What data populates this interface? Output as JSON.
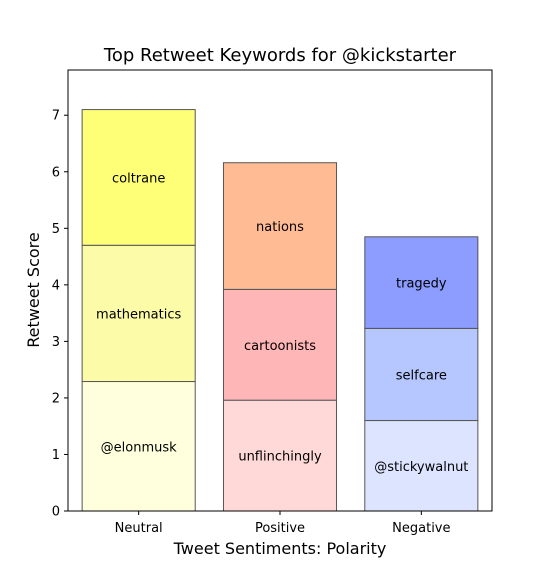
{
  "chart_data": {
    "type": "bar",
    "stacked": true,
    "title": "Top Retweet Keywords for @kickstarter",
    "xlabel": "Tweet Sentiments: Polarity",
    "ylabel": "Retweet Score",
    "ylim": [
      0,
      7.8
    ],
    "yticks": [
      0,
      1,
      2,
      3,
      4,
      5,
      6,
      7
    ],
    "categories": [
      "Neutral",
      "Positive",
      "Negative"
    ],
    "bars": [
      {
        "category": "Neutral",
        "segments": [
          {
            "label": "@elonmusk",
            "value": 2.29,
            "color": "#ffffdd"
          },
          {
            "label": "mathematics",
            "value": 2.41,
            "color": "#fbfba8"
          },
          {
            "label": "coltrane",
            "value": 2.4,
            "color": "#ffff77"
          }
        ]
      },
      {
        "category": "Positive",
        "segments": [
          {
            "label": "unflinchingly",
            "value": 1.96,
            "color": "#ffd8d8"
          },
          {
            "label": "cartoonists",
            "value": 1.96,
            "color": "#ffb6b6"
          },
          {
            "label": "nations",
            "value": 2.24,
            "color": "#ffbb94"
          }
        ]
      },
      {
        "category": "Negative",
        "segments": [
          {
            "label": "@stickywalnut",
            "value": 1.6,
            "color": "#dde4ff"
          },
          {
            "label": "selfcare",
            "value": 1.63,
            "color": "#b6c6ff"
          },
          {
            "label": "tragedy",
            "value": 1.62,
            "color": "#8c9cff"
          }
        ]
      }
    ]
  }
}
